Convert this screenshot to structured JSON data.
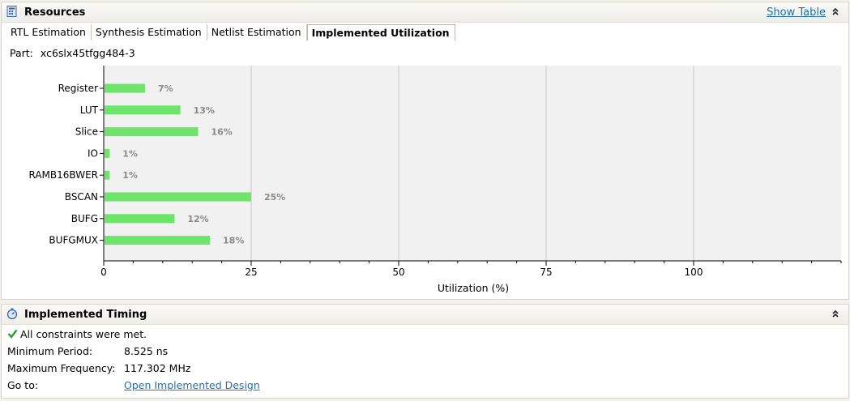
{
  "resources": {
    "title": "Resources",
    "show_table": "Show Table",
    "tabs": [
      {
        "label": "RTL Estimation"
      },
      {
        "label": "Synthesis Estimation"
      },
      {
        "label": "Netlist Estimation"
      },
      {
        "label": "Implemented Utilization"
      }
    ],
    "active_tab": 3,
    "part_label": "Part:",
    "part_value": "xc6slx45tfgg484-3"
  },
  "chart_data": {
    "type": "bar",
    "orientation": "horizontal",
    "categories": [
      "Register",
      "LUT",
      "Slice",
      "IO",
      "RAMB16BWER",
      "BSCAN",
      "BUFG",
      "BUFGMUX"
    ],
    "values": [
      7,
      13,
      16,
      1,
      1,
      25,
      12,
      18
    ],
    "labels": [
      "7%",
      "13%",
      "16%",
      "1%",
      "1%",
      "25%",
      "12%",
      "18%"
    ],
    "xlabel": "Utilization (%)",
    "xlim": [
      0,
      125
    ],
    "xticks": [
      0,
      25,
      50,
      75,
      100
    ],
    "grid": true,
    "bar_color": "#6ee46a"
  },
  "timing": {
    "title": "Implemented Timing",
    "status": "All constraints were met.",
    "rows": [
      {
        "label": "Minimum Period:",
        "value": "8.525 ns"
      },
      {
        "label": "Maximum Frequency:",
        "value": "117.302 MHz"
      }
    ],
    "goto_label": "Go to:",
    "goto_link": "Open Implemented Design"
  },
  "icons": {
    "resources": "resources-grid-icon",
    "timing": "stopwatch-icon",
    "collapse": "double-chevron-up-icon",
    "status": "green-check-icon"
  },
  "colors": {
    "link": "#1f6fb0",
    "bar": "#6ee46a",
    "plot_bg": "#f1f1f1",
    "check": "#2e9e2e"
  }
}
